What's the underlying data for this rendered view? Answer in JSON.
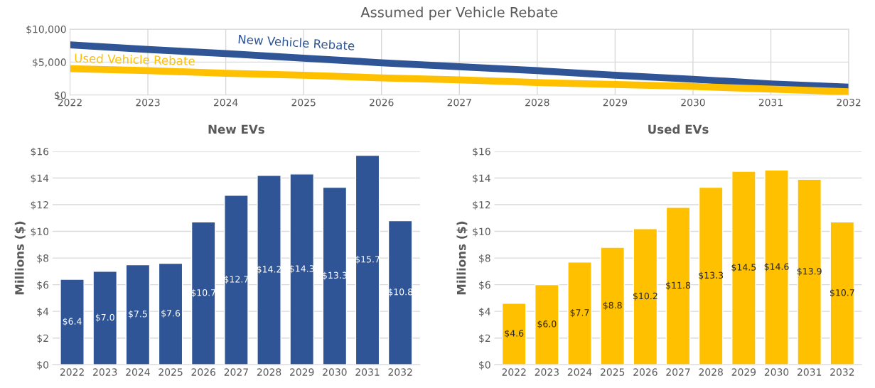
{
  "chart_data": [
    {
      "type": "line",
      "title": "Assumed per Vehicle Rebate",
      "x": [
        2022,
        2023,
        2024,
        2025,
        2026,
        2027,
        2028,
        2029,
        2030,
        2031,
        2032
      ],
      "series": [
        {
          "name": "New Vehicle Rebate",
          "color": "#2f5597",
          "values": [
            7600,
            6900,
            6300,
            5600,
            4900,
            4300,
            3700,
            3000,
            2400,
            1700,
            1200
          ]
        },
        {
          "name": "Used Vehicle Rebate",
          "color": "#ffc000",
          "values": [
            4000,
            3700,
            3300,
            3000,
            2600,
            2300,
            1900,
            1600,
            1300,
            900,
            500
          ]
        }
      ],
      "xlim": [
        2022,
        2032
      ],
      "xticks": [
        2022,
        2023,
        2024,
        2025,
        2026,
        2027,
        2028,
        2029,
        2030,
        2031,
        2032
      ],
      "ylim": [
        0,
        10000
      ],
      "yticks": [
        {
          "value": 0,
          "label": "$0"
        },
        {
          "value": 5000,
          "label": "$5,000"
        },
        {
          "value": 10000,
          "label": "$10,000"
        }
      ],
      "grid": true,
      "legend": false,
      "marker": "none",
      "line_style": "solid"
    },
    {
      "type": "bar",
      "title": "New EVs",
      "ylabel": "Millions ($)",
      "categories": [
        "2022",
        "2023",
        "2024",
        "2025",
        "2026",
        "2027",
        "2028",
        "2029",
        "2030",
        "2031",
        "2032"
      ],
      "values": [
        6.4,
        7.0,
        7.5,
        7.6,
        10.7,
        12.7,
        14.2,
        14.3,
        13.3,
        15.7,
        10.8
      ],
      "color": "#2f5597",
      "value_labels": [
        "$6.4",
        "$7.0",
        "$7.5",
        "$7.6",
        "$10.7",
        "$12.7",
        "$14.2",
        "$14.3",
        "$13.3",
        "$15.7",
        "$10.8"
      ],
      "ylim": [
        0,
        16
      ],
      "yticks": [
        {
          "value": 0,
          "label": "$0"
        },
        {
          "value": 2,
          "label": "$2"
        },
        {
          "value": 4,
          "label": "$4"
        },
        {
          "value": 6,
          "label": "$6"
        },
        {
          "value": 8,
          "label": "$8"
        },
        {
          "value": 10,
          "label": "$10"
        },
        {
          "value": 12,
          "label": "$12"
        },
        {
          "value": 14,
          "label": "$14"
        },
        {
          "value": 16,
          "label": "$16"
        }
      ],
      "grid": "y",
      "legend": false
    },
    {
      "type": "bar",
      "title": "Used EVs",
      "ylabel": "Millions ($)",
      "categories": [
        "2022",
        "2023",
        "2024",
        "2025",
        "2026",
        "2027",
        "2028",
        "2029",
        "2030",
        "2031",
        "2032"
      ],
      "values": [
        4.6,
        6.0,
        7.7,
        8.8,
        10.2,
        11.8,
        13.3,
        14.5,
        14.6,
        13.9,
        10.7
      ],
      "color": "#ffc000",
      "value_labels": [
        "$4.6",
        "$6.0",
        "$7.7",
        "$8.8",
        "$10.2",
        "$11.8",
        "$13.3",
        "$14.5",
        "$14.6",
        "$13.9",
        "$10.7"
      ],
      "ylim": [
        0,
        16
      ],
      "yticks": [
        {
          "value": 0,
          "label": "$0"
        },
        {
          "value": 2,
          "label": "$2"
        },
        {
          "value": 4,
          "label": "$4"
        },
        {
          "value": 6,
          "label": "$6"
        },
        {
          "value": 8,
          "label": "$8"
        },
        {
          "value": 10,
          "label": "$10"
        },
        {
          "value": 12,
          "label": "$12"
        },
        {
          "value": 14,
          "label": "$14"
        },
        {
          "value": 16,
          "label": "$16"
        }
      ],
      "grid": "y",
      "legend": false
    }
  ]
}
